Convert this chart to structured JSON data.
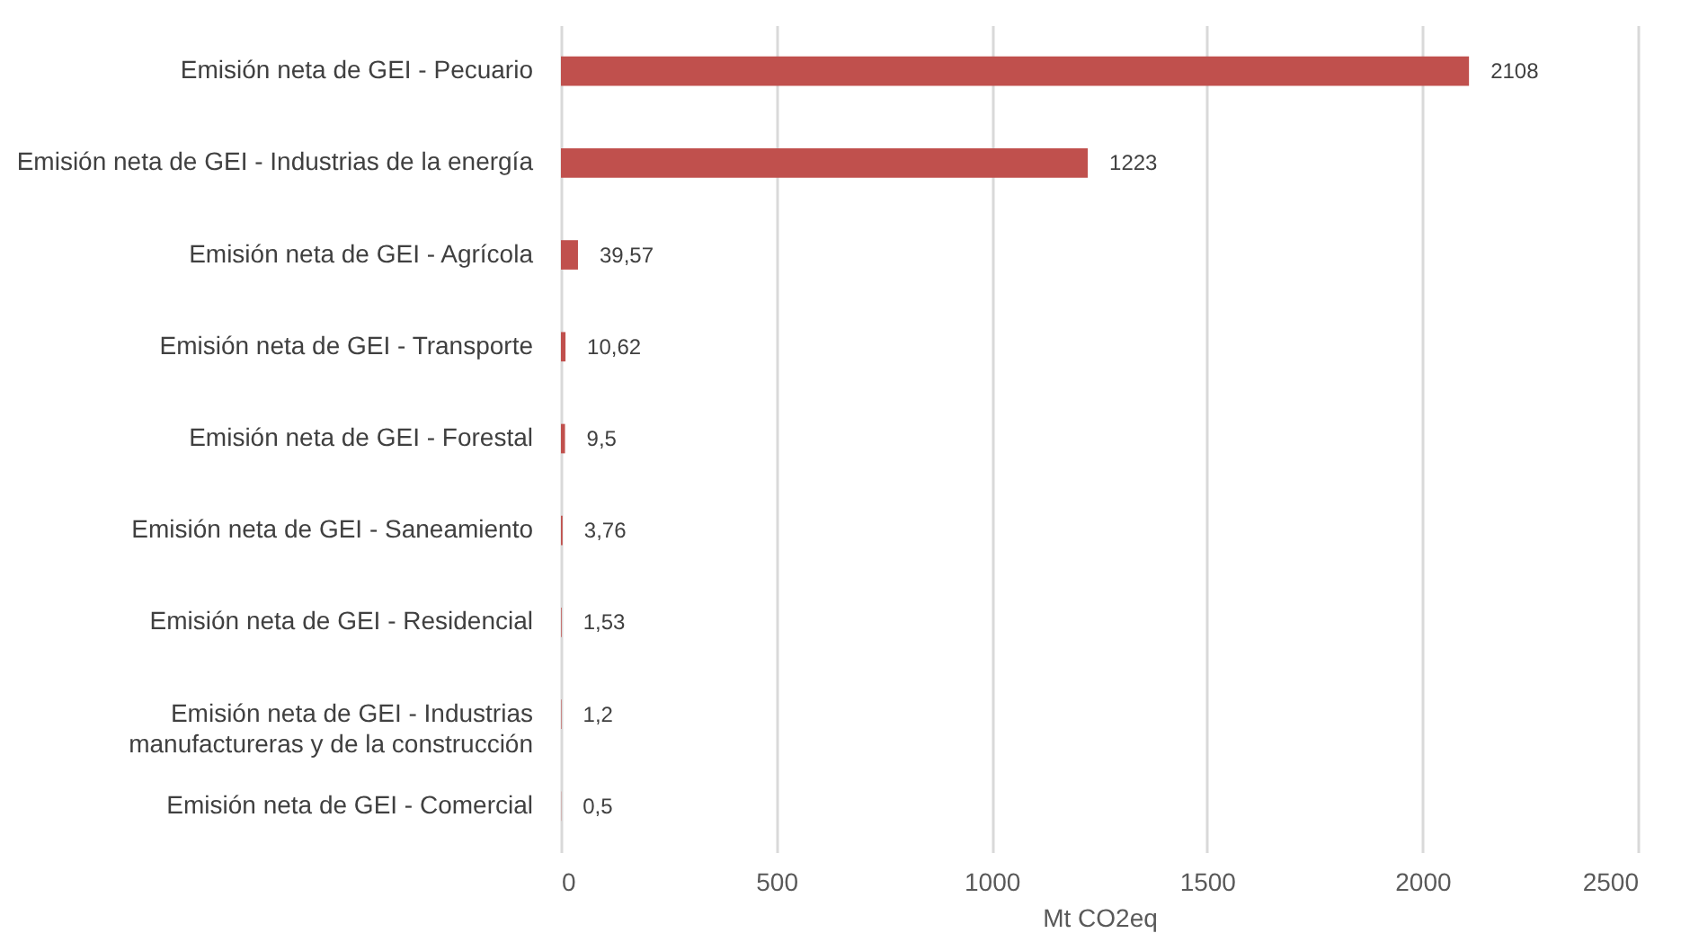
{
  "chart_data": {
    "type": "bar",
    "orientation": "horizontal",
    "xlabel": "Mt CO2eq",
    "categories": [
      "Emisión neta de GEI - Pecuario",
      "Emisión neta de GEI - Industrias de la energía",
      "Emisión neta de GEI - Agrícola",
      "Emisión neta de GEI - Transporte",
      "Emisión neta de GEI - Forestal",
      "Emisión neta de GEI - Saneamiento",
      "Emisión neta de GEI - Residencial",
      "Emisión neta de GEI -  Industrias manufactureras y de la construcción",
      "Emisión neta de GEI - Comercial"
    ],
    "values": [
      2108,
      1223,
      39.57,
      10.62,
      9.5,
      3.76,
      1.53,
      1.2,
      0.5
    ],
    "value_labels": [
      "2108",
      "1223",
      "39,57",
      "10,62",
      "9,5",
      "3,76",
      "1,53",
      "1,2",
      "0,5"
    ],
    "color": "#c0504d",
    "xlim": [
      0,
      2500
    ],
    "xticks": [
      0,
      500,
      1000,
      1500,
      2000,
      2500
    ],
    "grid": "x"
  }
}
